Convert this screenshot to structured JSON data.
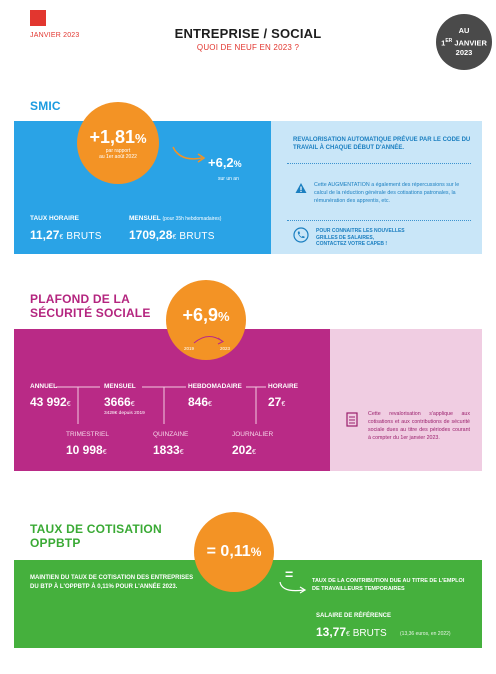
{
  "header": {
    "date": "JANVIER 2023",
    "title": "ENTREPRISE / SOCIAL",
    "subtitle": "QUOI DE NEUF EN 2023 ?",
    "badge_line1": "AU",
    "badge_line2_num": "1",
    "badge_line2_sup": "ER",
    "badge_line2_rest": " JANVIER",
    "badge_line3": "2023"
  },
  "smic": {
    "title": "SMIC",
    "increase": "+1,81",
    "percent": "%",
    "increase_note1": "par rapport",
    "increase_note2": "au 1er août 2022",
    "year_increase": "+6,2",
    "year_note": "sur un an",
    "hourly_label": "TAUX HORAIRE",
    "hourly_value": "11,27",
    "hourly_unit": "€",
    "hourly_brut": " BRUTS",
    "monthly_label": "MENSUEL",
    "monthly_note": "(pour 35h hebdomadaires)",
    "monthly_value": "1709,28",
    "monthly_unit": "€",
    "monthly_brut": " BRUTS",
    "note_heading": "REVALORISATION AUTOMATIQUE PRÉVUE PAR LE CODE DU TRAVAIL À CHAQUE DÉBUT D'ANNÉE.",
    "note_text": "Cette AUGMENTATION a également des répercussions sur le calcul de la réduction générale des cotisations patronales, la rémunération des apprentis, etc.",
    "contact_line1": "POUR CONNAITRE LES NOUVELLES",
    "contact_line2": "GRILLES DE SALAIRES,",
    "contact_line3": "CONTACTEZ VOTRE CAPEB !"
  },
  "pss": {
    "title_line1": "PLAFOND DE LA",
    "title_line2": "SÉCURITÉ SOCIALE",
    "increase": "+6,9",
    "percent": "%",
    "year_from": "2019",
    "year_to": "2023",
    "annuel_label": "ANNUEL",
    "annuel_value": "43 992",
    "mensuel_label": "MENSUEL",
    "mensuel_value": "3666",
    "mensuel_note": "3428€ depuis 2019",
    "hebdo_label": "HEBDOMADAIRE",
    "hebdo_value": "846",
    "horaire_label": "HORAIRE",
    "horaire_value": "27",
    "trimestriel_label": "TRIMESTRIEL",
    "trimestriel_value": "10 998",
    "quinzaine_label": "QUINZAINE",
    "quinzaine_value": "1833",
    "journalier_label": "JOURNALIER",
    "journalier_value": "202",
    "currency": "€",
    "note_text": "Cette revalorisation s'applique aux cotisations et aux contributions de sécurité sociale dues au titre des périodes courant à compter du 1er janvier 2023."
  },
  "oppbtp": {
    "title_line1": "TAUX DE COTISATION",
    "title_line2": "OPPBTP",
    "rate": "= 0,11",
    "percent": "%",
    "left_text": "MAINTIEN DU TAUX DE COTISATION DES ENTREPRISES DU BTP À L'OPPBTP À 0,11% POUR L'ANNÉE 2023.",
    "equals": "=",
    "right_text": "TAUX DE LA CONTRIBUTION DUE AU TITRE DE L'EMPLOI DE TRAVAILLEURS TEMPORAIRES",
    "ref_label": "SALAIRE DE RÉFÉRENCE",
    "ref_value": "13,77",
    "ref_unit": "€",
    "ref_brut": " BRUTS",
    "ref_note": "(13,36 euros, en 2022)"
  },
  "colors": {
    "red": "#e2362f",
    "blue": "#2aa3e6",
    "pink": "#b92a86",
    "green": "#45b03d",
    "orange": "#f39325"
  }
}
